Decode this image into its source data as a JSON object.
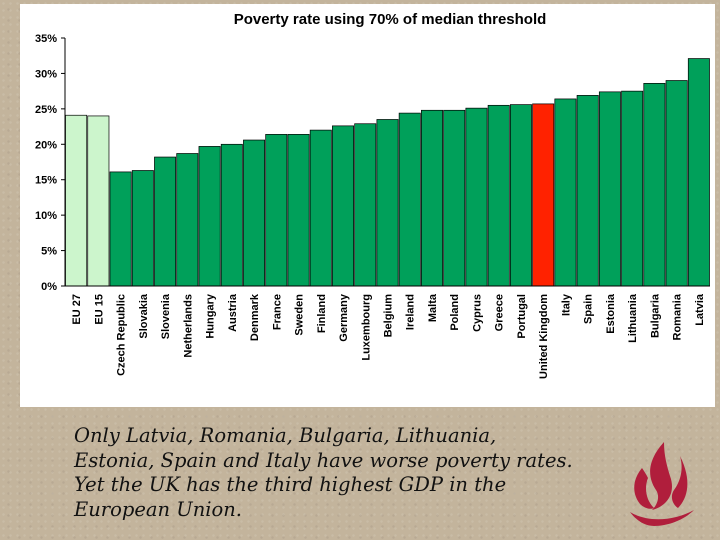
{
  "chart_data": {
    "type": "bar",
    "title": "Poverty rate using 70% of median threshold",
    "xlabel": "",
    "ylabel": "",
    "ylim": [
      0,
      35
    ],
    "yticks": [
      "0%",
      "5%",
      "10%",
      "15%",
      "20%",
      "25%",
      "30%",
      "35%"
    ],
    "categories": [
      "EU 27",
      "EU 15",
      "Czech Republic",
      "Slovakia",
      "Slovenia",
      "Netherlands",
      "Hungary",
      "Austria",
      "Denmark",
      "France",
      "Sweden",
      "Finland",
      "Germany",
      "Luxembourg",
      "Belgium",
      "Ireland",
      "Malta",
      "Poland",
      "Cyprus",
      "Greece",
      "Portugal",
      "United Kingdom",
      "Italy",
      "Spain",
      "Estonia",
      "Lithuania",
      "Bulgaria",
      "Romania",
      "Latvia"
    ],
    "values": [
      24.1,
      24.0,
      16.1,
      16.3,
      18.2,
      18.7,
      19.7,
      20.0,
      20.6,
      21.4,
      21.4,
      22.0,
      22.6,
      22.9,
      23.5,
      24.4,
      24.8,
      24.8,
      25.1,
      25.5,
      25.6,
      25.7,
      26.4,
      26.9,
      27.4,
      27.5,
      28.6,
      29.0,
      32.1
    ],
    "bar_colors": [
      "#ccf5cc",
      "#ccf5cc",
      "#00a05a",
      "#00a05a",
      "#00a05a",
      "#00a05a",
      "#00a05a",
      "#00a05a",
      "#00a05a",
      "#00a05a",
      "#00a05a",
      "#00a05a",
      "#00a05a",
      "#00a05a",
      "#00a05a",
      "#00a05a",
      "#00a05a",
      "#00a05a",
      "#00a05a",
      "#00a05a",
      "#00a05a",
      "#ff2200",
      "#00a05a",
      "#00a05a",
      "#00a05a",
      "#00a05a",
      "#00a05a",
      "#00a05a",
      "#00a05a"
    ],
    "grid": false,
    "legend": "none"
  },
  "caption": {
    "lines": [
      "Only Latvia, Romania, Bulgaria, Lithuania,",
      "Estonia, Spain and Italy have worse poverty rates.",
      "Yet the UK has the third highest GDP in the",
      "European Union."
    ]
  },
  "colors": {
    "background": "#c3b49c",
    "bar_default": "#00a05a",
    "bar_eu": "#ccf5cc",
    "bar_highlight": "#ff2200",
    "logo": "#b01e3c"
  }
}
